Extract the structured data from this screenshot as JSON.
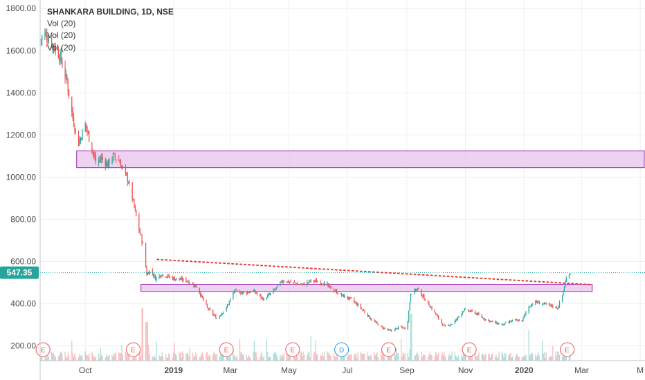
{
  "chart_data": {
    "type": "candlestick",
    "title": "SHANKARA BUILDING, 1D, NSE",
    "legend": [
      "Vol (20)",
      "Vol (20)",
      "Vol (20)"
    ],
    "y_ticks": [
      200,
      400,
      600,
      800,
      1000,
      1200,
      1400,
      1600,
      1800
    ],
    "y_tick_labels": [
      "200.00",
      "400.00",
      "600.00",
      "800.00",
      "1000.00",
      "1200.00",
      "1400.00",
      "1600.00",
      "1800.00"
    ],
    "ylim": [
      130,
      1840
    ],
    "x_ticks": [
      {
        "date": "2018-10-01",
        "label": "Oct"
      },
      {
        "date": "2019-01-01",
        "label": "2019",
        "bold": true
      },
      {
        "date": "2019-03-01",
        "label": "Mar"
      },
      {
        "date": "2019-05-01",
        "label": "May"
      },
      {
        "date": "2019-07-01",
        "label": "Jul"
      },
      {
        "date": "2019-09-01",
        "label": "Sep"
      },
      {
        "date": "2019-11-01",
        "label": "Nov"
      },
      {
        "date": "2020-01-01",
        "label": "2020",
        "bold": true
      },
      {
        "date": "2020-03-01",
        "label": "Mar"
      },
      {
        "date": "2020-05-01",
        "label": "M"
      }
    ],
    "xlim": [
      "2018-08-15",
      "2020-05-06"
    ],
    "price_path": [
      [
        "2018-08-15",
        1650
      ],
      [
        "2018-08-20",
        1680
      ],
      [
        "2018-08-28",
        1630
      ],
      [
        "2018-09-05",
        1570
      ],
      [
        "2018-09-12",
        1450
      ],
      [
        "2018-09-18",
        1280
      ],
      [
        "2018-09-24",
        1160
      ],
      [
        "2018-10-01",
        1250
      ],
      [
        "2018-10-06",
        1170
      ],
      [
        "2018-10-12",
        1070
      ],
      [
        "2018-10-18",
        1090
      ],
      [
        "2018-10-24",
        1060
      ],
      [
        "2018-10-30",
        1100
      ],
      [
        "2018-11-05",
        1080
      ],
      [
        "2018-11-15",
        980
      ],
      [
        "2018-11-20",
        880
      ],
      [
        "2018-11-25",
        770
      ],
      [
        "2018-11-30",
        680
      ],
      [
        "2018-12-04",
        540
      ],
      [
        "2018-12-08",
        560
      ],
      [
        "2018-12-13",
        520
      ],
      [
        "2018-12-19",
        540
      ],
      [
        "2019-01-01",
        520
      ],
      [
        "2019-01-15",
        510
      ],
      [
        "2019-01-25",
        480
      ],
      [
        "2019-02-05",
        380
      ],
      [
        "2019-02-15",
        330
      ],
      [
        "2019-02-25",
        380
      ],
      [
        "2019-03-05",
        460
      ],
      [
        "2019-03-15",
        450
      ],
      [
        "2019-03-25",
        460
      ],
      [
        "2019-04-05",
        420
      ],
      [
        "2019-04-15",
        460
      ],
      [
        "2019-04-25",
        510
      ],
      [
        "2019-05-05",
        500
      ],
      [
        "2019-05-15",
        490
      ],
      [
        "2019-05-25",
        510
      ],
      [
        "2019-06-05",
        500
      ],
      [
        "2019-06-15",
        470
      ],
      [
        "2019-06-25",
        440
      ],
      [
        "2019-07-05",
        420
      ],
      [
        "2019-07-15",
        380
      ],
      [
        "2019-07-25",
        330
      ],
      [
        "2019-08-05",
        290
      ],
      [
        "2019-08-15",
        270
      ],
      [
        "2019-08-25",
        290
      ],
      [
        "2019-09-01",
        280
      ],
      [
        "2019-09-05",
        450
      ],
      [
        "2019-09-12",
        470
      ],
      [
        "2019-09-20",
        420
      ],
      [
        "2019-10-01",
        350
      ],
      [
        "2019-10-10",
        290
      ],
      [
        "2019-10-20",
        310
      ],
      [
        "2019-10-30",
        370
      ],
      [
        "2019-11-10",
        360
      ],
      [
        "2019-11-20",
        330
      ],
      [
        "2019-12-01",
        310
      ],
      [
        "2019-12-10",
        300
      ],
      [
        "2019-12-20",
        320
      ],
      [
        "2019-12-30",
        320
      ],
      [
        "2020-01-05",
        380
      ],
      [
        "2020-01-12",
        410
      ],
      [
        "2020-01-20",
        400
      ],
      [
        "2020-01-30",
        390
      ],
      [
        "2020-02-05",
        380
      ],
      [
        "2020-02-10",
        440
      ],
      [
        "2020-02-14",
        520
      ],
      [
        "2020-02-18",
        550
      ]
    ],
    "volume_spikes": [
      {
        "date": "2018-11-30",
        "rel": 0.95
      },
      {
        "date": "2018-12-04",
        "rel": 0.7
      },
      {
        "date": "2019-05-25",
        "rel": 0.45
      },
      {
        "date": "2019-09-05",
        "rel": 0.85
      },
      {
        "date": "2020-01-05",
        "rel": 0.55
      }
    ],
    "zones": [
      {
        "from": "2018-09-22",
        "to": "2020-05-06",
        "low": 1045,
        "high": 1125
      },
      {
        "from": "2018-11-28",
        "to": "2020-03-12",
        "low": 458,
        "high": 492
      }
    ],
    "trendline": {
      "from": [
        "2018-12-15",
        610
      ],
      "to": [
        "2020-03-12",
        490
      ]
    },
    "current_price": 547.35,
    "current_price_label": "547.35",
    "events": [
      {
        "date": "2018-08-18",
        "label": "E",
        "kind": "earnings"
      },
      {
        "date": "2018-11-20",
        "label": "E",
        "kind": "earnings"
      },
      {
        "date": "2019-02-25",
        "label": "E",
        "kind": "earnings"
      },
      {
        "date": "2019-05-05",
        "label": "E",
        "kind": "earnings"
      },
      {
        "date": "2019-06-25",
        "label": "D",
        "kind": "dividend"
      },
      {
        "date": "2019-08-13",
        "label": "E",
        "kind": "earnings"
      },
      {
        "date": "2019-11-05",
        "label": "E",
        "kind": "earnings"
      },
      {
        "date": "2020-02-15",
        "label": "E",
        "kind": "earnings"
      }
    ],
    "colors": {
      "up": "#26a69a",
      "down": "#ef5350",
      "zone_fill": "#e8c8ee",
      "zone_stroke": "#9c27b0",
      "trend": "#e53935",
      "price_line": "#26a69a",
      "grid": "#eef0f3",
      "earnings": "#ef5350",
      "dividend": "#2196f3"
    }
  }
}
